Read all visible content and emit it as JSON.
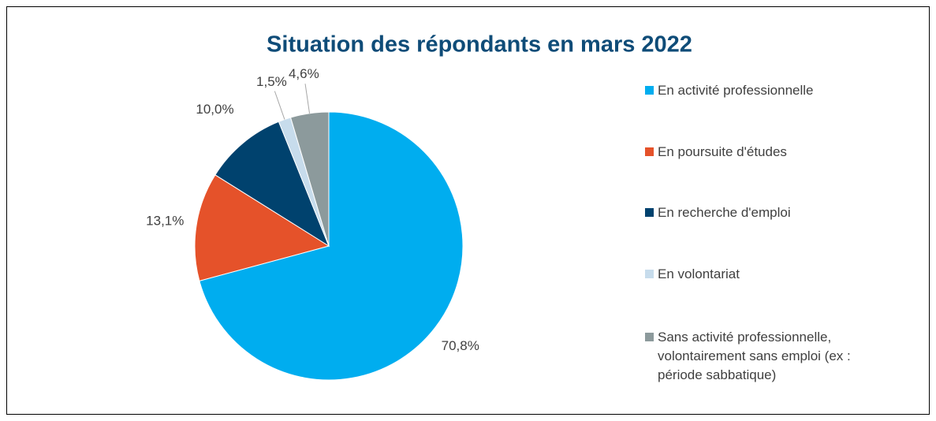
{
  "chart_data": {
    "type": "pie",
    "title": "Situation des répondants en mars 2022",
    "categories": [
      "En activité professionnelle",
      "En poursuite d'études",
      "En recherche d'emploi",
      "En volontariat",
      "Sans activité professionnelle, volontairement sans emploi (ex : période sabbatique)"
    ],
    "values": [
      70.8,
      13.1,
      10.0,
      1.5,
      4.6
    ],
    "value_labels": [
      "70,8%",
      "13,1%",
      "10,0%",
      "1,5%",
      "4,6%"
    ],
    "colors": [
      "#00adef",
      "#e5522a",
      "#00426e",
      "#c7dcec",
      "#8c9a9c"
    ],
    "legend": "right"
  }
}
